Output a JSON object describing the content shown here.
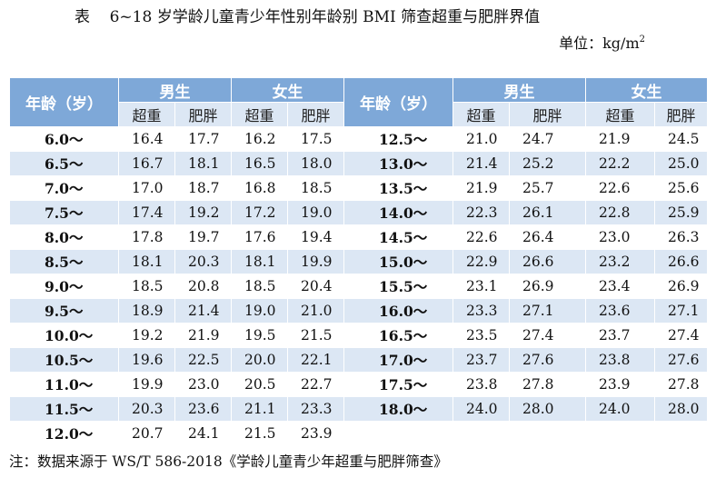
{
  "title": "表    6~18 岁学龄儿童青少年性别年龄别 BMI 筛查超重与肥胖界值",
  "unit_prefix": "单位：kg/m",
  "unit_sup": "2",
  "headers": {
    "age": "年龄（岁）",
    "male": "男生",
    "female": "女生",
    "overweight": "超重",
    "obese": "肥胖"
  },
  "rows": [
    {
      "left": {
        "age": "6.0～",
        "mo": "16.4",
        "mb": "17.7",
        "fo": "16.2",
        "fb": "17.5"
      },
      "right": {
        "age": "12.5～",
        "mo": "21.0",
        "mb": "24.7",
        "fo": "21.9",
        "fb": "24.5"
      }
    },
    {
      "left": {
        "age": "6.5～",
        "mo": "16.7",
        "mb": "18.1",
        "fo": "16.5",
        "fb": "18.0"
      },
      "right": {
        "age": "13.0～",
        "mo": "21.4",
        "mb": "25.2",
        "fo": "22.2",
        "fb": "25.0"
      }
    },
    {
      "left": {
        "age": "7.0～",
        "mo": "17.0",
        "mb": "18.7",
        "fo": "16.8",
        "fb": "18.5"
      },
      "right": {
        "age": "13.5～",
        "mo": "21.9",
        "mb": "25.7",
        "fo": "22.6",
        "fb": "25.6"
      }
    },
    {
      "left": {
        "age": "7.5～",
        "mo": "17.4",
        "mb": "19.2",
        "fo": "17.2",
        "fb": "19.0"
      },
      "right": {
        "age": "14.0～",
        "mo": "22.3",
        "mb": "26.1",
        "fo": "22.8",
        "fb": "25.9"
      }
    },
    {
      "left": {
        "age": "8.0～",
        "mo": "17.8",
        "mb": "19.7",
        "fo": "17.6",
        "fb": "19.4"
      },
      "right": {
        "age": "14.5～",
        "mo": "22.6",
        "mb": "26.4",
        "fo": "23.0",
        "fb": "26.3"
      }
    },
    {
      "left": {
        "age": "8.5～",
        "mo": "18.1",
        "mb": "20.3",
        "fo": "18.1",
        "fb": "19.9"
      },
      "right": {
        "age": "15.0～",
        "mo": "22.9",
        "mb": "26.6",
        "fo": "23.2",
        "fb": "26.6"
      }
    },
    {
      "left": {
        "age": "9.0～",
        "mo": "18.5",
        "mb": "20.8",
        "fo": "18.5",
        "fb": "20.4"
      },
      "right": {
        "age": "15.5～",
        "mo": "23.1",
        "mb": "26.9",
        "fo": "23.4",
        "fb": "26.9"
      }
    },
    {
      "left": {
        "age": "9.5～",
        "mo": "18.9",
        "mb": "21.4",
        "fo": "19.0",
        "fb": "21.0"
      },
      "right": {
        "age": "16.0～",
        "mo": "23.3",
        "mb": "27.1",
        "fo": "23.6",
        "fb": "27.1"
      }
    },
    {
      "left": {
        "age": "10.0～",
        "mo": "19.2",
        "mb": "21.9",
        "fo": "19.5",
        "fb": "21.5"
      },
      "right": {
        "age": "16.5～",
        "mo": "23.5",
        "mb": "27.4",
        "fo": "23.7",
        "fb": "27.4"
      }
    },
    {
      "left": {
        "age": "10.5～",
        "mo": "19.6",
        "mb": "22.5",
        "fo": "20.0",
        "fb": "22.1"
      },
      "right": {
        "age": "17.0～",
        "mo": "23.7",
        "mb": "27.6",
        "fo": "23.8",
        "fb": "27.6"
      }
    },
    {
      "left": {
        "age": "11.0～",
        "mo": "19.9",
        "mb": "23.0",
        "fo": "20.5",
        "fb": "22.7"
      },
      "right": {
        "age": "17.5～",
        "mo": "23.8",
        "mb": "27.8",
        "fo": "23.9",
        "fb": "27.8"
      }
    },
    {
      "left": {
        "age": "11.5～",
        "mo": "20.3",
        "mb": "23.6",
        "fo": "21.1",
        "fb": "23.3"
      },
      "right": {
        "age": "18.0～",
        "mo": "24.0",
        "mb": "28.0",
        "fo": "24.0",
        "fb": "28.0"
      }
    },
    {
      "left": {
        "age": "12.0～",
        "mo": "20.7",
        "mb": "24.1",
        "fo": "21.5",
        "fb": "23.9"
      },
      "right": {
        "age": "",
        "mo": "",
        "mb": "",
        "fo": "",
        "fb": ""
      }
    }
  ],
  "note": "注：数据来源于 WS/T 586-2018《学龄儿童青少年超重与肥胖筛查》",
  "colors": {
    "header": "#7ea8d8",
    "stripe": "#dce7f4"
  }
}
